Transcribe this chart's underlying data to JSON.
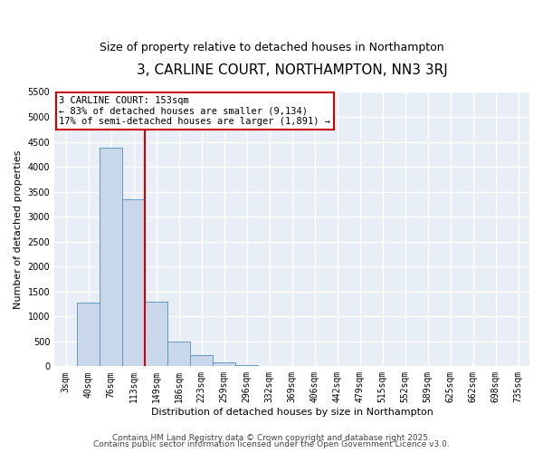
{
  "title": "3, CARLINE COURT, NORTHAMPTON, NN3 3RJ",
  "subtitle": "Size of property relative to detached houses in Northampton",
  "xlabel": "Distribution of detached houses by size in Northampton",
  "ylabel": "Number of detached properties",
  "bar_labels": [
    "3sqm",
    "40sqm",
    "76sqm",
    "113sqm",
    "149sqm",
    "186sqm",
    "223sqm",
    "259sqm",
    "296sqm",
    "332sqm",
    "369sqm",
    "406sqm",
    "442sqm",
    "479sqm",
    "515sqm",
    "552sqm",
    "589sqm",
    "625sqm",
    "662sqm",
    "698sqm",
    "735sqm"
  ],
  "bar_values": [
    0,
    1270,
    4380,
    3340,
    1290,
    500,
    230,
    80,
    30,
    0,
    0,
    0,
    0,
    0,
    0,
    0,
    0,
    0,
    0,
    0,
    0
  ],
  "bar_color": "#c8d8ea",
  "bar_edgecolor": "#6699bb",
  "vline_x_index": 3.5,
  "vline_color": "#cc0000",
  "ylim": [
    0,
    5500
  ],
  "yticks": [
    0,
    500,
    1000,
    1500,
    2000,
    2500,
    3000,
    3500,
    4000,
    4500,
    5000,
    5500
  ],
  "annotation_title": "3 CARLINE COURT: 153sqm",
  "annotation_line1": "← 83% of detached houses are smaller (9,134)",
  "annotation_line2": "17% of semi-detached houses are larger (1,891) →",
  "annotation_box_facecolor": "#ffffff",
  "annotation_box_edgecolor": "#cc0000",
  "footer1": "Contains HM Land Registry data © Crown copyright and database right 2025.",
  "footer2": "Contains public sector information licensed under the Open Government Licence v3.0.",
  "background_color": "#ffffff",
  "plot_background_color": "#e8eef5",
  "grid_color": "#ffffff",
  "title_fontsize": 11,
  "subtitle_fontsize": 9,
  "axis_label_fontsize": 8,
  "tick_fontsize": 7,
  "annotation_fontsize": 7.5,
  "footer_fontsize": 6.5
}
